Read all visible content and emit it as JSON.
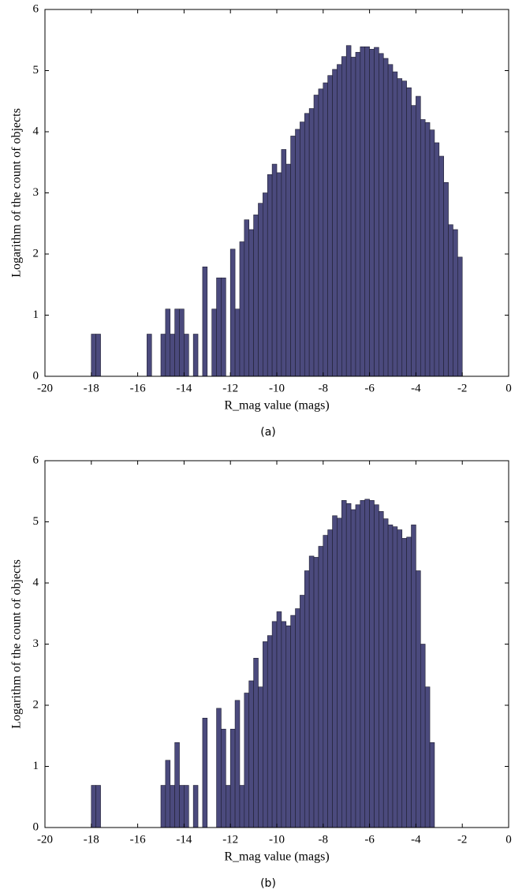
{
  "chart_data": [
    {
      "type": "histogram",
      "caption": "(a)",
      "xlabel": "R_mag value (mags)",
      "ylabel": "Logarithm of the count of objects",
      "color": "#4b4a7d",
      "bins": [
        -18,
        -17.8,
        -17.6,
        -17.4,
        -17.2,
        -17,
        -16.8,
        -16.6,
        -16.4,
        -16.2,
        -16,
        -15.8,
        -15.6,
        -15.4,
        -15.2,
        -15,
        -14.8,
        -14.6,
        -14.4,
        -14.2,
        -14,
        -13.8,
        -13.6,
        -13.4,
        -13.2,
        -13,
        -12.8,
        -12.6,
        -12.4,
        -12.2,
        -12,
        -11.8,
        -11.6,
        -11.4,
        -11.2,
        -11,
        -10.8,
        -10.6,
        -10.4,
        -10.2,
        -10,
        -9.8,
        -9.6,
        -9.4,
        -9.2,
        -9,
        -8.8,
        -8.6,
        -8.4,
        -8.2,
        -8,
        -7.8,
        -7.6,
        -7.4,
        -7.2,
        -7,
        -6.8,
        -6.6,
        -6.4,
        -6.2,
        -6,
        -5.8,
        -5.6,
        -5.4,
        -5.2,
        -5,
        -4.8,
        -4.6,
        -4.4,
        -4.2,
        -4,
        -3.8,
        -3.6,
        -3.4,
        -3.2,
        -3,
        -2.8,
        -2.6,
        -2.4,
        -2.2,
        -2
      ],
      "counts": [
        0.69,
        0.69,
        0,
        0,
        0,
        0,
        0,
        0,
        0,
        0,
        0,
        0,
        0.69,
        0,
        0,
        0.69,
        1.1,
        0.69,
        1.1,
        1.1,
        0.69,
        0,
        0.69,
        0,
        1.79,
        0,
        1.1,
        1.61,
        1.61,
        0,
        2.08,
        1.1,
        2.2,
        2.56,
        2.4,
        2.64,
        2.83,
        3.0,
        3.3,
        3.47,
        3.33,
        3.71,
        3.47,
        3.93,
        4.04,
        4.16,
        4.3,
        4.38,
        4.6,
        4.7,
        4.8,
        4.92,
        5.02,
        5.1,
        5.23,
        5.41,
        5.22,
        5.3,
        5.39,
        5.39,
        5.35,
        5.38,
        5.28,
        5.2,
        5.1,
        4.98,
        4.87,
        4.83,
        4.72,
        4.43,
        4.58,
        4.2,
        4.15,
        4.03,
        3.82,
        3.6,
        3.17,
        2.48,
        2.4,
        1.95
      ],
      "xlim": [
        -20,
        0
      ],
      "ylim": [
        0,
        6
      ],
      "xticks": [
        -20,
        -18,
        -16,
        -14,
        -12,
        -10,
        -8,
        -6,
        -4,
        -2,
        0
      ],
      "yticks": [
        0,
        1,
        2,
        3,
        4,
        5,
        6
      ]
    },
    {
      "type": "histogram",
      "caption": "(b)",
      "xlabel": "R_mag value (mags)",
      "ylabel": "Logarithm of the count of objects",
      "color": "#4b4a7d",
      "bins": [
        -18,
        -17.8,
        -17.6,
        -17.4,
        -17.2,
        -17,
        -16.8,
        -16.6,
        -16.4,
        -16.2,
        -16,
        -15.8,
        -15.6,
        -15.4,
        -15.2,
        -15,
        -14.8,
        -14.6,
        -14.4,
        -14.2,
        -14,
        -13.8,
        -13.6,
        -13.4,
        -13.2,
        -13,
        -12.8,
        -12.6,
        -12.4,
        -12.2,
        -12,
        -11.8,
        -11.6,
        -11.4,
        -11.2,
        -11,
        -10.8,
        -10.6,
        -10.4,
        -10.2,
        -10,
        -9.8,
        -9.6,
        -9.4,
        -9.2,
        -9,
        -8.8,
        -8.6,
        -8.4,
        -8.2,
        -8,
        -7.8,
        -7.6,
        -7.4,
        -7.2,
        -7,
        -6.8,
        -6.6,
        -6.4,
        -6.2,
        -6,
        -5.8,
        -5.6,
        -5.4,
        -5.2,
        -5,
        -4.8,
        -4.6,
        -4.4,
        -4.2,
        -4,
        -3.8,
        -3.6,
        -3.4,
        -3.2,
        -3,
        -2.8,
        -2.6,
        -2.4,
        -2.2,
        -2
      ],
      "counts": [
        0.69,
        0.69,
        0,
        0,
        0,
        0,
        0,
        0,
        0,
        0,
        0,
        0,
        0,
        0,
        0,
        0.69,
        1.1,
        0.69,
        1.39,
        0.69,
        0.69,
        0,
        0.69,
        0,
        1.79,
        0,
        0,
        1.95,
        1.61,
        0.69,
        1.61,
        2.08,
        0.69,
        2.2,
        2.4,
        2.77,
        2.3,
        3.04,
        3.14,
        3.37,
        3.53,
        3.37,
        3.3,
        3.47,
        3.58,
        3.8,
        4.2,
        4.44,
        4.42,
        4.6,
        4.78,
        4.87,
        5.1,
        5.06,
        5.35,
        5.3,
        5.2,
        5.28,
        5.35,
        5.37,
        5.35,
        5.28,
        5.17,
        5.05,
        4.95,
        4.92,
        4.87,
        4.73,
        4.75,
        4.95,
        4.2,
        3.0,
        2.3,
        1.39,
        0,
        0,
        0,
        0,
        0,
        0
      ],
      "xlim": [
        -20,
        0
      ],
      "ylim": [
        0,
        6
      ],
      "xticks": [
        -20,
        -18,
        -16,
        -14,
        -12,
        -10,
        -8,
        -6,
        -4,
        -2,
        0
      ],
      "yticks": [
        0,
        1,
        2,
        3,
        4,
        5,
        6
      ]
    }
  ]
}
